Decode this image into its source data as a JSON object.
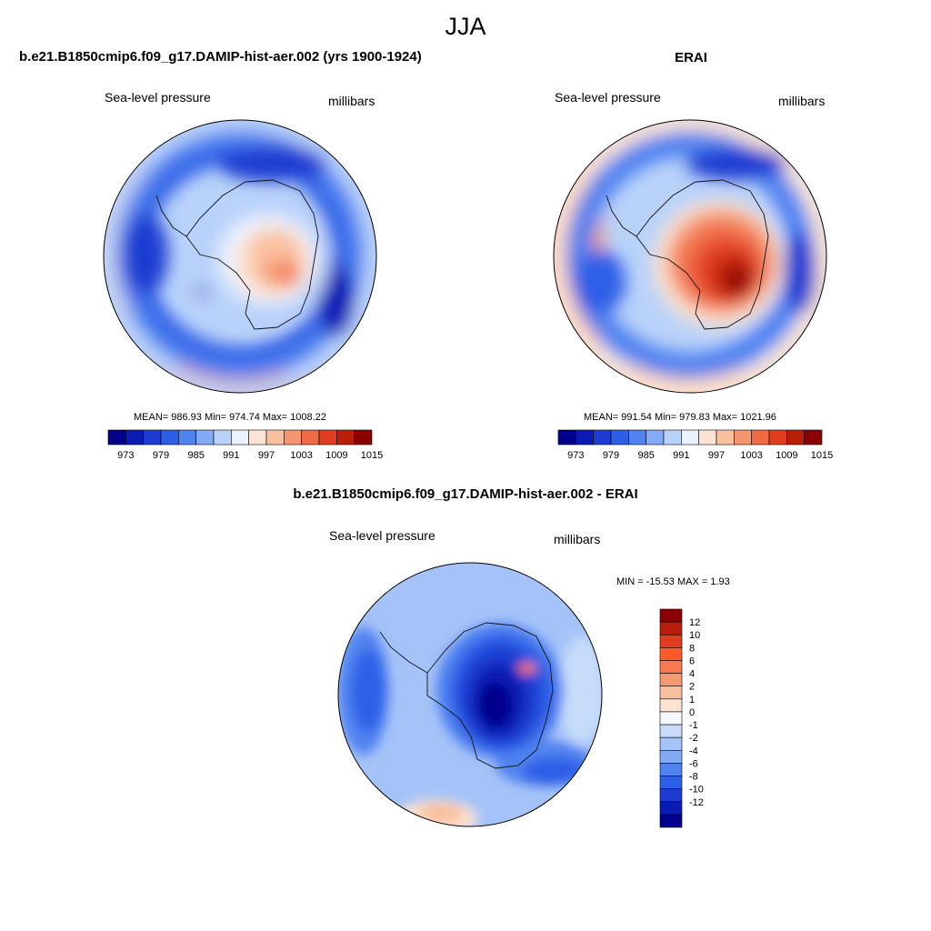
{
  "figure": {
    "season": "JJA"
  },
  "panels": [
    {
      "title": "b.e21.B1850cmip6.f09_g17.DAMIP-hist-aer.002 (yrs 1900-1924)",
      "left_label": "Sea-level pressure",
      "right_label": "millibars",
      "stats": "MEAN= 986.93  Min= 974.74  Max= 1008.22"
    },
    {
      "title": "ERAI",
      "left_label": "Sea-level pressure",
      "right_label": "millibars",
      "stats": "MEAN= 991.54  Min= 979.83  Max= 1021.96"
    },
    {
      "title": "b.e21.B1850cmip6.f09_g17.DAMIP-hist-aer.002 - ERAI",
      "left_label": "Sea-level pressure",
      "right_label": "millibars",
      "stats": "MIN = -15.53 MAX =   1.93"
    }
  ],
  "colorbars": {
    "field": {
      "colors": [
        "#00008b",
        "#0a1cb4",
        "#1e3cd2",
        "#2d5fe6",
        "#5082f0",
        "#82aaf5",
        "#b9d2fa",
        "#eaf2ff",
        "#fde4d2",
        "#f9c0a0",
        "#f59670",
        "#f06a46",
        "#e03c1e",
        "#b81e0a",
        "#8b0000"
      ],
      "tick_labels": [
        "973",
        "979",
        "985",
        "991",
        "997",
        "1003",
        "1009",
        "1015"
      ]
    },
    "difference": {
      "colors": [
        "#8b0000",
        "#b81e0a",
        "#e03c1e",
        "#ff5a28",
        "#f87850",
        "#f59a70",
        "#f9c0a0",
        "#fde4d2",
        "#f5f8ff",
        "#c8dcfa",
        "#a5c3f8",
        "#82aaf5",
        "#5082f0",
        "#2d5fe6",
        "#1e3cd2",
        "#0a1cb4",
        "#00008b"
      ],
      "tick_labels": [
        "12",
        "10",
        "8",
        "6",
        "4",
        "2",
        "1",
        "0",
        "-1",
        "-2",
        "-4",
        "-6",
        "-8",
        "-10",
        "-12"
      ]
    }
  }
}
